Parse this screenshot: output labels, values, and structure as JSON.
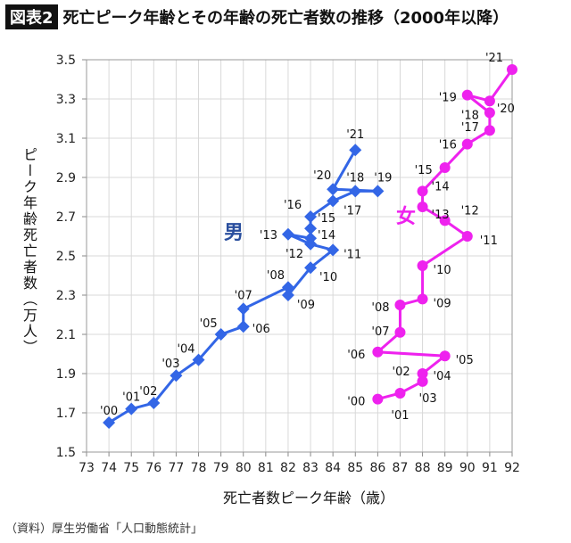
{
  "title": {
    "tag": "図表2",
    "text": "死亡ピーク年齢とその年齢の死亡者数の推移（2000年以降）"
  },
  "source": "（資料）厚生労働省「人口動態統計」",
  "chart_data": {
    "type": "scatter",
    "title": "死亡ピーク年齢とその年齢の死亡者数の推移（2000年以降）",
    "xlabel": "死亡者数ピーク年齢（歳）",
    "ylabel": "ピーク年齢死亡者数（万人）",
    "xlim": [
      73,
      92
    ],
    "ylim": [
      1.5,
      3.5
    ],
    "xticks": [
      "73",
      "74",
      "75",
      "76",
      "77",
      "78",
      "79",
      "80",
      "81",
      "82",
      "83",
      "84",
      "85",
      "86",
      "87",
      "88",
      "89",
      "90",
      "91",
      "92"
    ],
    "yticks": [
      "1.5",
      "1.7",
      "1.9",
      "2.1",
      "2.3",
      "2.5",
      "2.7",
      "2.9",
      "3.1",
      "3.3",
      "3.5"
    ],
    "grid": true,
    "series": [
      {
        "name": "男",
        "color": "#3366e6",
        "marker": "diamond",
        "labels": [
          "'00",
          "'01",
          "'02",
          "'03",
          "'04",
          "'05",
          "'06",
          "'07",
          "'08",
          "'09",
          "'10",
          "'11",
          "'12",
          "'13",
          "'14",
          "'15",
          "'16",
          "'17",
          "'18",
          "'19",
          "'20",
          "'21"
        ],
        "x": [
          74,
          75,
          76,
          77,
          78,
          79,
          80,
          80,
          82,
          82,
          83,
          84,
          83,
          82,
          83,
          83,
          83,
          84,
          85,
          86,
          84,
          85
        ],
        "y": [
          1.65,
          1.72,
          1.75,
          1.89,
          1.97,
          2.1,
          2.14,
          2.23,
          2.34,
          2.3,
          2.44,
          2.53,
          2.56,
          2.61,
          2.59,
          2.64,
          2.7,
          2.78,
          2.83,
          2.83,
          2.84,
          3.04
        ]
      },
      {
        "name": "女",
        "color": "#ee22ee",
        "marker": "circle",
        "labels": [
          "'00",
          "'01",
          "'02",
          "'03",
          "'04",
          "'05",
          "'06",
          "'07",
          "'08",
          "'09",
          "'10",
          "'11",
          "'12",
          "'13",
          "'14",
          "'15",
          "'16",
          "'17",
          "'18",
          "'19",
          "'20",
          "'21"
        ],
        "x": [
          86,
          87,
          88,
          88,
          88,
          89,
          86,
          87,
          87,
          88,
          88,
          90,
          89,
          88,
          88,
          89,
          90,
          91,
          91,
          90,
          91,
          92
        ],
        "y": [
          1.77,
          1.8,
          1.86,
          1.86,
          1.9,
          1.99,
          2.01,
          2.11,
          2.25,
          2.28,
          2.45,
          2.6,
          2.68,
          2.75,
          2.83,
          2.95,
          3.07,
          3.14,
          3.23,
          3.32,
          3.29,
          3.45
        ]
      }
    ]
  }
}
